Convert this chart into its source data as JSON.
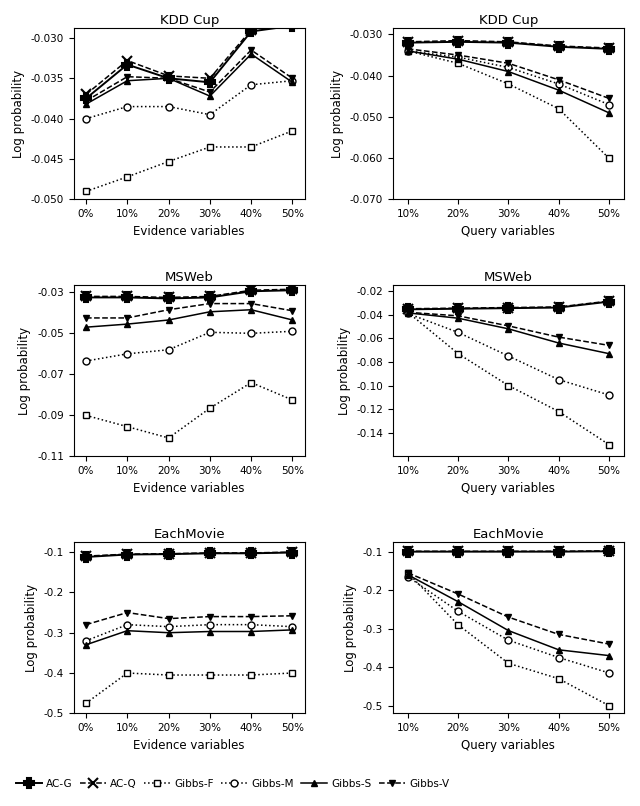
{
  "plots": [
    {
      "title": "KDD Cup",
      "xlabel": "Evidence variables",
      "ylabel": "Log probability",
      "xticks": [
        "0%",
        "10%",
        "20%",
        "30%",
        "40%",
        "50%"
      ],
      "xvals": [
        0,
        1,
        2,
        3,
        4,
        5
      ],
      "ylim": [
        -0.05,
        -0.0288
      ],
      "yticks": [
        -0.05,
        -0.045,
        -0.04,
        -0.035,
        -0.03
      ],
      "series": {
        "AC-G": [
          -0.0375,
          -0.0333,
          -0.035,
          -0.0355,
          -0.0292,
          -0.0285
        ],
        "AC-Q": [
          -0.037,
          -0.0328,
          -0.0347,
          -0.035,
          -0.029,
          -0.0282
        ],
        "Gibbs-F": [
          -0.049,
          -0.0472,
          -0.0453,
          -0.0435,
          -0.0435,
          -0.0415
        ],
        "Gibbs-M": [
          -0.04,
          -0.0385,
          -0.0385,
          -0.0395,
          -0.0358,
          -0.0353
        ],
        "Gibbs-S": [
          -0.0382,
          -0.0353,
          -0.035,
          -0.0372,
          -0.032,
          -0.0355
        ],
        "Gibbs-V": [
          -0.0378,
          -0.0348,
          -0.035,
          -0.0367,
          -0.0315,
          -0.035
        ]
      }
    },
    {
      "title": "KDD Cup",
      "xlabel": "Query variables",
      "ylabel": "Log probability",
      "xticks": [
        "10%",
        "20%",
        "30%",
        "40%",
        "50%"
      ],
      "xvals": [
        0,
        1,
        2,
        3,
        4
      ],
      "ylim": [
        -0.07,
        -0.0285
      ],
      "yticks": [
        -0.07,
        -0.06,
        -0.05,
        -0.04,
        -0.03
      ],
      "series": {
        "AC-G": [
          -0.032,
          -0.0318,
          -0.032,
          -0.033,
          -0.0335
        ],
        "AC-Q": [
          -0.0318,
          -0.0315,
          -0.0318,
          -0.0328,
          -0.0333
        ],
        "Gibbs-F": [
          -0.034,
          -0.037,
          -0.042,
          -0.048,
          -0.06
        ],
        "Gibbs-M": [
          -0.034,
          -0.0355,
          -0.038,
          -0.042,
          -0.047
        ],
        "Gibbs-S": [
          -0.034,
          -0.036,
          -0.039,
          -0.0435,
          -0.049
        ],
        "Gibbs-V": [
          -0.0335,
          -0.035,
          -0.037,
          -0.041,
          -0.0455
        ]
      }
    },
    {
      "title": "MSWeb",
      "xlabel": "Evidence variables",
      "ylabel": "Log probability",
      "xticks": [
        "0%",
        "10%",
        "20%",
        "30%",
        "40%",
        "50%"
      ],
      "xvals": [
        0,
        1,
        2,
        3,
        4,
        5
      ],
      "ylim": [
        -0.11,
        -0.0265
      ],
      "yticks": [
        -0.11,
        -0.09,
        -0.07,
        -0.05,
        -0.03
      ],
      "series": {
        "AC-G": [
          -0.0325,
          -0.0325,
          -0.033,
          -0.0325,
          -0.0295,
          -0.029
        ],
        "AC-Q": [
          -0.032,
          -0.032,
          -0.0325,
          -0.032,
          -0.029,
          -0.0285
        ],
        "Gibbs-F": [
          -0.09,
          -0.0955,
          -0.101,
          -0.0865,
          -0.074,
          -0.0825
        ],
        "Gibbs-M": [
          -0.0635,
          -0.06,
          -0.058,
          -0.0495,
          -0.05,
          -0.049
        ],
        "Gibbs-S": [
          -0.047,
          -0.0455,
          -0.0435,
          -0.0395,
          -0.0385,
          -0.0435
        ],
        "Gibbs-V": [
          -0.0425,
          -0.0425,
          -0.0385,
          -0.0355,
          -0.0355,
          -0.039
        ]
      }
    },
    {
      "title": "MSWeb",
      "xlabel": "Query variables",
      "ylabel": "Log probability",
      "xticks": [
        "10%",
        "20%",
        "30%",
        "40%",
        "50%"
      ],
      "xvals": [
        0,
        1,
        2,
        3,
        4
      ],
      "ylim": [
        -0.16,
        -0.015
      ],
      "yticks": [
        -0.14,
        -0.12,
        -0.1,
        -0.08,
        -0.06,
        -0.04,
        -0.02
      ],
      "series": {
        "AC-G": [
          -0.0355,
          -0.035,
          -0.0345,
          -0.034,
          -0.029
        ],
        "AC-Q": [
          -0.035,
          -0.0345,
          -0.034,
          -0.0335,
          -0.0285
        ],
        "Gibbs-F": [
          -0.038,
          -0.073,
          -0.1,
          -0.122,
          -0.15
        ],
        "Gibbs-M": [
          -0.039,
          -0.055,
          -0.075,
          -0.095,
          -0.108
        ],
        "Gibbs-S": [
          -0.0385,
          -0.043,
          -0.052,
          -0.064,
          -0.073
        ],
        "Gibbs-V": [
          -0.038,
          -0.041,
          -0.0495,
          -0.059,
          -0.066
        ]
      }
    },
    {
      "title": "EachMovie",
      "xlabel": "Evidence variables",
      "ylabel": "Log probability",
      "xticks": [
        "0%",
        "10%",
        "20%",
        "30%",
        "40%",
        "50%"
      ],
      "xvals": [
        0,
        1,
        2,
        3,
        4,
        5
      ],
      "ylim": [
        -0.5,
        -0.075
      ],
      "yticks": [
        -0.5,
        -0.4,
        -0.3,
        -0.2,
        -0.1
      ],
      "series": {
        "AC-G": [
          -0.112,
          -0.106,
          -0.105,
          -0.103,
          -0.103,
          -0.101
        ],
        "AC-Q": [
          -0.11,
          -0.105,
          -0.104,
          -0.102,
          -0.102,
          -0.1
        ],
        "Gibbs-F": [
          -0.475,
          -0.4,
          -0.405,
          -0.405,
          -0.405,
          -0.4
        ],
        "Gibbs-M": [
          -0.32,
          -0.28,
          -0.285,
          -0.28,
          -0.28,
          -0.285
        ],
        "Gibbs-S": [
          -0.33,
          -0.295,
          -0.3,
          -0.297,
          -0.297,
          -0.293
        ],
        "Gibbs-V": [
          -0.28,
          -0.25,
          -0.265,
          -0.26,
          -0.26,
          -0.258
        ]
      }
    },
    {
      "title": "EachMovie",
      "xlabel": "Query variables",
      "ylabel": "Log probability",
      "xticks": [
        "10%",
        "20%",
        "30%",
        "40%",
        "50%"
      ],
      "xvals": [
        0,
        1,
        2,
        3,
        4
      ],
      "ylim": [
        -0.52,
        -0.075
      ],
      "yticks": [
        -0.5,
        -0.4,
        -0.3,
        -0.2,
        -0.1
      ],
      "series": {
        "AC-G": [
          -0.1,
          -0.1,
          -0.1,
          -0.1,
          -0.099
        ],
        "AC-Q": [
          -0.099,
          -0.099,
          -0.099,
          -0.099,
          -0.098
        ],
        "Gibbs-F": [
          -0.155,
          -0.29,
          -0.39,
          -0.43,
          -0.5
        ],
        "Gibbs-M": [
          -0.165,
          -0.255,
          -0.33,
          -0.375,
          -0.415
        ],
        "Gibbs-S": [
          -0.16,
          -0.23,
          -0.305,
          -0.355,
          -0.37
        ],
        "Gibbs-V": [
          -0.155,
          -0.21,
          -0.27,
          -0.315,
          -0.34
        ]
      }
    }
  ]
}
